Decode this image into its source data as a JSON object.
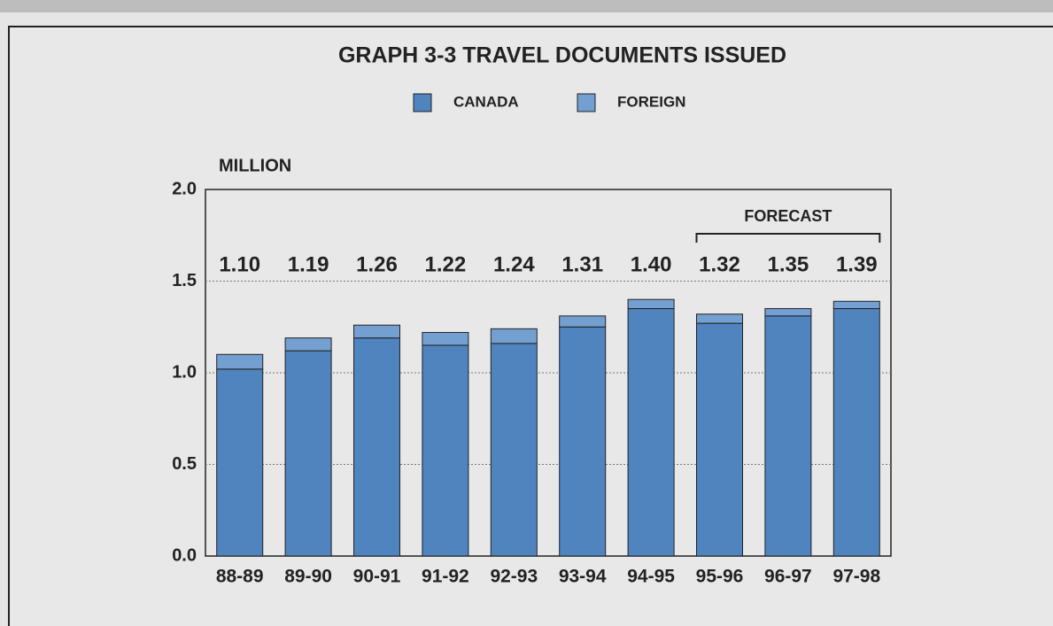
{
  "chart_data": {
    "type": "stacked_bar",
    "title": "GRAPH 3-3  TRAVEL DOCUMENTS ISSUED",
    "y_label": "MILLION",
    "categories": [
      "88-89",
      "89-90",
      "90-91",
      "91-92",
      "92-93",
      "93-94",
      "94-95",
      "95-96",
      "96-97",
      "97-98"
    ],
    "series": [
      {
        "name": "CANADA",
        "color": "#4f84bf",
        "values": [
          1.02,
          1.12,
          1.19,
          1.15,
          1.16,
          1.25,
          1.35,
          1.27,
          1.31,
          1.35
        ]
      },
      {
        "name": "FOREIGN",
        "color": "#73a0d0",
        "values": [
          0.08,
          0.07,
          0.07,
          0.07,
          0.08,
          0.06,
          0.05,
          0.05,
          0.04,
          0.04
        ]
      }
    ],
    "total_labels": [
      "1.10",
      "1.19",
      "1.26",
      "1.22",
      "1.24",
      "1.31",
      "1.40",
      "1.32",
      "1.35",
      "1.39"
    ],
    "forecast": {
      "label": "FORECAST",
      "categories": [
        "95-96",
        "96-97",
        "97-98"
      ]
    },
    "ylim": [
      0,
      2
    ],
    "yticks": [
      {
        "value": 0,
        "label": "0.0"
      },
      {
        "value": 0.5,
        "label": "0.5"
      },
      {
        "value": 1,
        "label": "1.0"
      },
      {
        "value": 1.5,
        "label": "1.5"
      },
      {
        "value": 2,
        "label": "2.0"
      }
    ],
    "grid": true
  }
}
